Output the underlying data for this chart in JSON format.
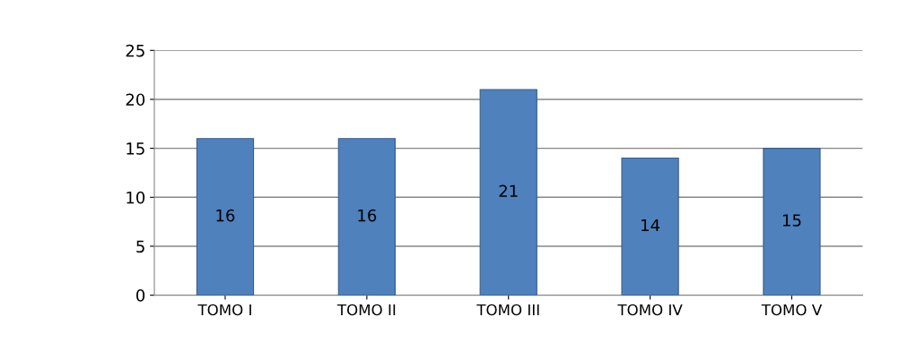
{
  "chart_data": {
    "type": "bar",
    "categories": [
      "TOMO I",
      "TOMO II",
      "TOMO III",
      "TOMO IV",
      "TOMO V"
    ],
    "values": [
      16,
      16,
      21,
      14,
      15
    ],
    "color": "#4f81bd",
    "ylim": [
      0,
      25
    ],
    "yticks": [
      0,
      5,
      10,
      15,
      20,
      25
    ],
    "grid": "y",
    "data_labels": true
  }
}
